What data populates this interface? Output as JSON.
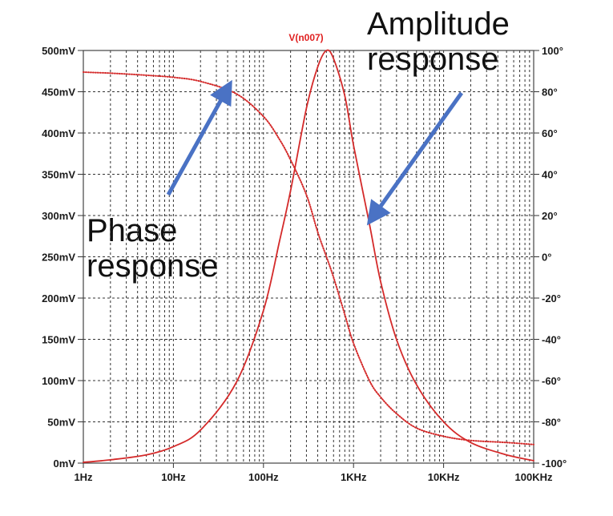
{
  "chart_data": {
    "type": "line",
    "trace_title": "V(n007)",
    "x_scale": "log",
    "xlim": [
      1,
      100000
    ],
    "x_tick_labels": [
      "1Hz",
      "10Hz",
      "100Hz",
      "1KHz",
      "10KHz",
      "100KHz"
    ],
    "ylim_left": [
      0,
      500
    ],
    "y_left_unit": "mV",
    "y_left_tick_labels": [
      "0mV",
      "50mV",
      "100mV",
      "150mV",
      "200mV",
      "250mV",
      "300mV",
      "350mV",
      "400mV",
      "450mV",
      "500mV"
    ],
    "ylim_right": [
      -100,
      100
    ],
    "y_right_unit": "°",
    "y_right_tick_labels": [
      "-100°",
      "-80°",
      "-60°",
      "-40°",
      "-20°",
      "0°",
      "20°",
      "40°",
      "60°",
      "80°",
      "100°"
    ],
    "grid": true,
    "colors": {
      "trace": "#d42a2a",
      "grid": "#333333",
      "arrow": "#4a72c4",
      "trace_title": "#e02020"
    },
    "series": [
      {
        "axis": "left",
        "style": "solid",
        "x": [
          1,
          2,
          5,
          10,
          20,
          50,
          100,
          150,
          200,
          300,
          400,
          500,
          600,
          800,
          1000,
          1500,
          2000,
          3000,
          5000,
          10000,
          20000,
          50000,
          100000
        ],
        "y": [
          1,
          4,
          10,
          20,
          40,
          98,
          185,
          268,
          330,
          430,
          480,
          500,
          490,
          445,
          385,
          290,
          220,
          150,
          95,
          50,
          25,
          10,
          3
        ]
      },
      {
        "axis": "right",
        "style": "dotted",
        "x": [
          1,
          2,
          5,
          10,
          20,
          50,
          100,
          150,
          200,
          300,
          400,
          500,
          600,
          800,
          1000,
          1500,
          2000,
          3000,
          5000,
          10000,
          20000,
          50000,
          100000
        ],
        "y": [
          89.5,
          89,
          88,
          87,
          85,
          79,
          68,
          57,
          47,
          30,
          12,
          0,
          -10,
          -28,
          -42,
          -60,
          -68,
          -76,
          -83,
          -87,
          -89,
          -90,
          -91
        ]
      }
    ],
    "annotations": [
      {
        "text_lines": [
          "Amplitude",
          "response"
        ],
        "points_to": "amplitude trace",
        "arrow_from": [
          1600,
          268
        ],
        "arrow_to": [
          1300,
          150
        ]
      },
      {
        "text_lines": [
          "Phase",
          "response"
        ],
        "points_to": "phase trace",
        "arrow_from": [
          10,
          320
        ],
        "arrow_to": [
          40,
          450
        ]
      }
    ]
  }
}
